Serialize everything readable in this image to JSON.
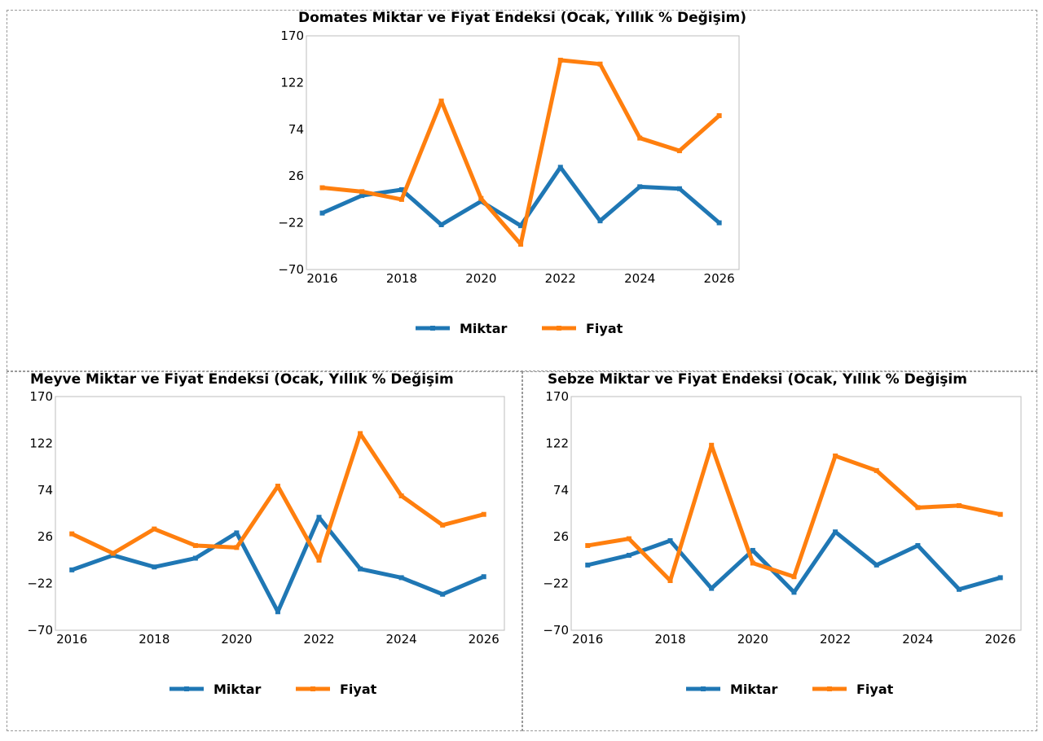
{
  "colors": {
    "miktar": "#1f77b4",
    "fiyat": "#ff7f0e"
  },
  "chart_data": [
    {
      "type": "line",
      "title": "Domates Miktar ve Fiyat Endeksi (Ocak, Yıllık % Değişim)",
      "x": [
        2016,
        2017,
        2018,
        2019,
        2020,
        2021,
        2022,
        2023,
        2024,
        2025,
        2026
      ],
      "xticks": [
        "2016",
        "2018",
        "2020",
        "2022",
        "2024",
        "2026"
      ],
      "yticks": [
        "170",
        "122",
        "74",
        "26",
        "−22",
        "−70"
      ],
      "ylim": [
        -70,
        170
      ],
      "xlim": [
        2015.6,
        2026.5
      ],
      "series": [
        {
          "name": "Miktar",
          "values": [
            -12,
            6,
            12,
            -24,
            0,
            -25,
            35,
            -20,
            15,
            13,
            -22
          ]
        },
        {
          "name": "Fiyat",
          "values": [
            14,
            10,
            2,
            103,
            3,
            -44,
            145,
            141,
            65,
            52,
            88
          ]
        }
      ],
      "legend": [
        "Miktar",
        "Fiyat"
      ]
    },
    {
      "type": "line",
      "title": "Meyve Miktar ve Fiyat Endeksi (Ocak, Yıllık % Değişim",
      "x": [
        2016,
        2017,
        2018,
        2019,
        2020,
        2021,
        2022,
        2023,
        2024,
        2025,
        2026
      ],
      "xticks": [
        "2016",
        "2018",
        "2020",
        "2022",
        "2024",
        "2026"
      ],
      "yticks": [
        "170",
        "122",
        "74",
        "26",
        "−22",
        "−70"
      ],
      "ylim": [
        -70,
        170
      ],
      "xlim": [
        2015.6,
        2026.5
      ],
      "series": [
        {
          "name": "Miktar",
          "values": [
            -8,
            7,
            -5,
            4,
            30,
            -51,
            46,
            -7,
            -16,
            -33,
            -15
          ]
        },
        {
          "name": "Fiyat",
          "values": [
            29,
            9,
            34,
            17,
            15,
            78,
            2,
            132,
            68,
            38,
            49
          ]
        }
      ],
      "legend": [
        "Miktar",
        "Fiyat"
      ]
    },
    {
      "type": "line",
      "title": "Sebze Miktar ve Fiyat Endeksi (Ocak, Yıllık % Değişim",
      "x": [
        2016,
        2017,
        2018,
        2019,
        2020,
        2021,
        2022,
        2023,
        2024,
        2025,
        2026
      ],
      "xticks": [
        "2016",
        "2018",
        "2020",
        "2022",
        "2024",
        "2026"
      ],
      "yticks": [
        "170",
        "122",
        "74",
        "26",
        "−22",
        "−70"
      ],
      "ylim": [
        -70,
        170
      ],
      "xlim": [
        2015.6,
        2026.5
      ],
      "series": [
        {
          "name": "Miktar",
          "values": [
            -3,
            7,
            22,
            -27,
            12,
            -31,
            31,
            -3,
            17,
            -28,
            -16
          ]
        },
        {
          "name": "Fiyat",
          "values": [
            17,
            24,
            -19,
            120,
            -1,
            -15,
            109,
            94,
            56,
            58,
            49
          ]
        }
      ],
      "legend": [
        "Miktar",
        "Fiyat"
      ]
    }
  ]
}
